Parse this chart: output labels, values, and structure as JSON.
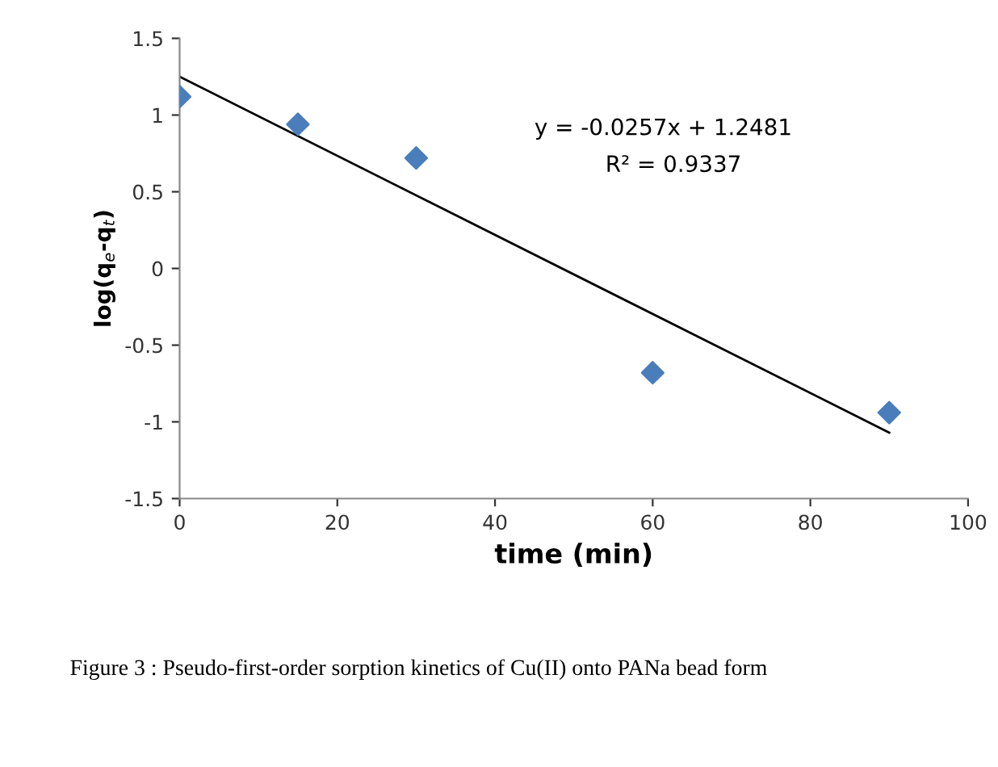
{
  "chart_data": {
    "type": "scatter",
    "xlabel": "time (min)",
    "ylabel": "log(q$_{e}$-q$_{t}$)",
    "series": [
      {
        "color": "#4a7ebb",
        "marker": "diamond",
        "x": [
          0,
          15,
          30,
          60,
          90
        ],
        "values": [
          1.12,
          0.94,
          0.72,
          -0.68,
          -0.94
        ]
      },
      {
        "type": "line",
        "color": "#000000",
        "marker": "none",
        "line_style": "solid",
        "x": [
          0,
          90
        ],
        "values": [
          1.25,
          -1.07
        ]
      }
    ],
    "xlim": [
      0,
      100
    ],
    "xticks": [
      0,
      20,
      40,
      60,
      80,
      100
    ],
    "ylim": [
      -1.5,
      1.5
    ],
    "yticks": [
      -1.5,
      -1,
      -0.5,
      0,
      0.5,
      1,
      1.5
    ],
    "grid": false,
    "legend": false,
    "annotations": [
      "y = -0.0257x + 1.2481",
      "R² = 0.9337",
      "Figure 3 : Pseudo-first-order sorption kinetics of Cu(II) onto PANa bead form"
    ]
  }
}
